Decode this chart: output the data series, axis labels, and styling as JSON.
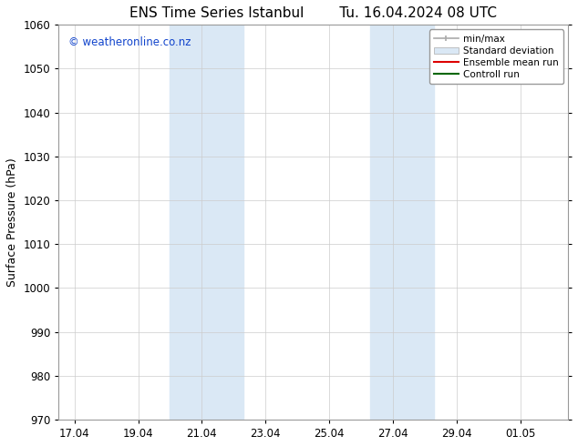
{
  "title_left": "ENS Time Series Istanbul",
  "title_right": "Tu. 16.04.2024 08 UTC",
  "ylabel": "Surface Pressure (hPa)",
  "ylim": [
    970,
    1060
  ],
  "yticks": [
    970,
    980,
    990,
    1000,
    1010,
    1020,
    1030,
    1040,
    1050,
    1060
  ],
  "xtick_labels": [
    "17.04",
    "19.04",
    "21.04",
    "23.04",
    "25.04",
    "27.04",
    "29.04",
    "01.05"
  ],
  "xtick_positions": [
    0,
    2,
    4,
    6,
    8,
    10,
    12,
    14
  ],
  "xlim": [
    -0.5,
    15.5
  ],
  "shaded_bands": [
    {
      "x_start": 3.0,
      "x_end": 3.7
    },
    {
      "x_start": 3.7,
      "x_end": 5.3
    },
    {
      "x_start": 9.0,
      "x_end": 9.7
    },
    {
      "x_start": 9.7,
      "x_end": 11.3
    }
  ],
  "shaded_color_dark": "#c5dcf0",
  "shaded_color_light": "#ddeeff",
  "watermark_text": "© weatheronline.co.nz",
  "watermark_color": "#1144cc",
  "watermark_fontsize": 8.5,
  "background_color": "#ffffff",
  "grid_color": "#cccccc",
  "spine_color": "#999999",
  "title_fontsize": 11,
  "axis_label_fontsize": 9,
  "tick_fontsize": 8.5,
  "legend_fontsize": 7.5
}
